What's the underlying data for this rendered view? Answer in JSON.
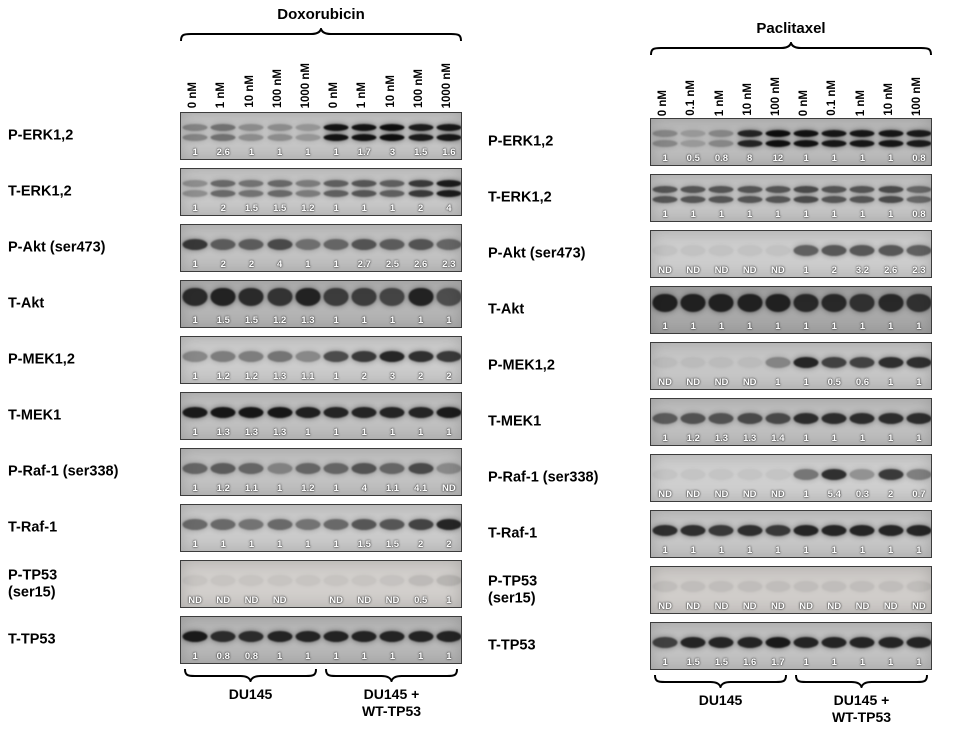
{
  "figure": {
    "panels": [
      {
        "title": "Doxorubicin",
        "doses": [
          "0 nM",
          "1 nM",
          "10 nM",
          "100 nM",
          "1000 nM",
          "0 nM",
          "1 nM",
          "10 nM",
          "100 nM",
          "1000 nM"
        ],
        "groups": [
          {
            "lines": [
              "DU145"
            ]
          },
          {
            "lines": [
              "DU145 +",
              "WT-TP53"
            ]
          }
        ],
        "rows": [
          {
            "label_lines": [
              "P-ERK1,2"
            ],
            "band": "double",
            "bg": "#c6c6c6",
            "values": [
              "1",
              "2.6",
              "1",
              "1",
              "1",
              "1",
              "1.7",
              "3",
              "1.5",
              "1.6"
            ],
            "intensities": [
              0.35,
              0.45,
              0.3,
              0.3,
              0.25,
              0.95,
              0.95,
              0.97,
              0.9,
              0.92
            ]
          },
          {
            "label_lines": [
              "T-ERK1,2"
            ],
            "band": "double",
            "bg": "#c9c9c9",
            "values": [
              "1",
              "2",
              "1.5",
              "1.5",
              "1.2",
              "1",
              "1",
              "1",
              "2",
              "4"
            ],
            "intensities": [
              0.3,
              0.5,
              0.45,
              0.5,
              0.4,
              0.55,
              0.6,
              0.55,
              0.75,
              0.9
            ]
          },
          {
            "label_lines": [
              "P-Akt (ser473)"
            ],
            "band": "single",
            "bg": "#c2c2c2",
            "values": [
              "1",
              "2",
              "2",
              "4",
              "1",
              "1",
              "2.7",
              "2.5",
              "2.6",
              "2.3"
            ],
            "intensities": [
              0.75,
              0.55,
              0.55,
              0.65,
              0.45,
              0.5,
              0.6,
              0.55,
              0.6,
              0.5
            ]
          },
          {
            "label_lines": [
              "T-Akt"
            ],
            "band": "blob",
            "bg": "#b5b5b5",
            "values": [
              "1",
              "1.5",
              "1.5",
              "1.2",
              "1.3",
              "1",
              "1",
              "1",
              "1",
              "1"
            ],
            "intensities": [
              0.8,
              0.85,
              0.8,
              0.75,
              0.85,
              0.7,
              0.7,
              0.65,
              0.85,
              0.6
            ]
          },
          {
            "label_lines": [
              "P-MEK1,2"
            ],
            "band": "single",
            "bg": "#cccccc",
            "values": [
              "1",
              "1.2",
              "1.2",
              "1.3",
              "1.1",
              "1",
              "2",
              "3",
              "2",
              "2"
            ],
            "intensities": [
              0.35,
              0.4,
              0.4,
              0.45,
              0.35,
              0.65,
              0.75,
              0.85,
              0.8,
              0.75
            ]
          },
          {
            "label_lines": [
              "T-MEK1"
            ],
            "band": "single",
            "bg": "#c0c0c0",
            "values": [
              "1",
              "1.3",
              "1.3",
              "1.3",
              "1",
              "1",
              "1",
              "1",
              "1",
              "1"
            ],
            "intensities": [
              0.9,
              0.92,
              0.92,
              0.92,
              0.88,
              0.85,
              0.85,
              0.85,
              0.85,
              0.9
            ]
          },
          {
            "label_lines": [
              "P-Raf-1 (ser338)"
            ],
            "band": "single",
            "bg": "#c2c2c2",
            "values": [
              "1",
              "1.2",
              "1.1",
              "1",
              "1.2",
              "1",
              "4",
              "1.1",
              "4.1",
              "ND"
            ],
            "intensities": [
              0.5,
              0.55,
              0.5,
              0.35,
              0.5,
              0.5,
              0.6,
              0.5,
              0.65,
              0.3
            ]
          },
          {
            "label_lines": [
              "T-Raf-1"
            ],
            "band": "single",
            "bg": "#cbcbcb",
            "values": [
              "1",
              "1",
              "1",
              "1",
              "1",
              "1",
              "1.5",
              "1.5",
              "2",
              "2"
            ],
            "intensities": [
              0.5,
              0.5,
              0.45,
              0.5,
              0.45,
              0.5,
              0.6,
              0.6,
              0.7,
              0.85
            ]
          },
          {
            "label_lines": [
              "P-TP53",
              "(ser15)"
            ],
            "band": "single",
            "bg": "#d2cfcc",
            "values": [
              "ND",
              "ND",
              "ND",
              "ND",
              "",
              "ND",
              "ND",
              "ND",
              "0.5",
              "1"
            ],
            "intensities": [
              0.05,
              0.05,
              0.05,
              0.05,
              0.05,
              0.05,
              0.05,
              0.06,
              0.1,
              0.13
            ]
          },
          {
            "label_lines": [
              "T-TP53"
            ],
            "band": "single",
            "bg": "#b8b8b8",
            "values": [
              "1",
              "0.8",
              "0.8",
              "1",
              "1",
              "1",
              "1",
              "1",
              "1",
              "1"
            ],
            "intensities": [
              0.9,
              0.8,
              0.8,
              0.85,
              0.85,
              0.85,
              0.85,
              0.85,
              0.85,
              0.85
            ]
          }
        ]
      },
      {
        "title": "Paclitaxel",
        "doses": [
          "0 nM",
          "0.1 nM",
          "1 nM",
          "10 nM",
          "100 nM",
          "0 nM",
          "0.1 nM",
          "1 nM",
          "10 nM",
          "100 nM"
        ],
        "groups": [
          {
            "lines": [
              "DU145"
            ]
          },
          {
            "lines": [
              "DU145 +",
              "WT-TP53"
            ]
          }
        ],
        "rows": [
          {
            "label_lines": [
              "P-ERK1,2"
            ],
            "band": "double",
            "bg": "#bdbdbd",
            "values": [
              "1",
              "0.5",
              "0.8",
              "8",
              "12",
              "1",
              "1",
              "1",
              "1",
              "0.8"
            ],
            "intensities": [
              0.3,
              0.2,
              0.3,
              0.85,
              0.97,
              0.95,
              0.92,
              0.92,
              0.92,
              0.9
            ]
          },
          {
            "label_lines": [
              "T-ERK1,2"
            ],
            "band": "double",
            "bg": "#c6c6c6",
            "values": [
              "1",
              "1",
              "1",
              "1",
              "1",
              "1",
              "1",
              "1",
              "1",
              "0.8"
            ],
            "intensities": [
              0.6,
              0.6,
              0.6,
              0.6,
              0.6,
              0.65,
              0.6,
              0.6,
              0.65,
              0.5
            ]
          },
          {
            "label_lines": [
              "P-Akt (ser473)"
            ],
            "band": "single",
            "bg": "#cdcdcd",
            "values": [
              "ND",
              "ND",
              "ND",
              "ND",
              "ND",
              "1",
              "2",
              "3.2",
              "2.6",
              "2.3"
            ],
            "intensities": [
              0.05,
              0.05,
              0.05,
              0.05,
              0.05,
              0.55,
              0.6,
              0.6,
              0.6,
              0.55
            ]
          },
          {
            "label_lines": [
              "T-Akt"
            ],
            "band": "blob",
            "bg": "#a8a8a8",
            "values": [
              "1",
              "1",
              "1",
              "1",
              "1",
              "1",
              "1",
              "1",
              "1",
              "1"
            ],
            "intensities": [
              0.85,
              0.85,
              0.85,
              0.85,
              0.85,
              0.8,
              0.8,
              0.75,
              0.8,
              0.75
            ]
          },
          {
            "label_lines": [
              "P-MEK1,2"
            ],
            "band": "single",
            "bg": "#c6c6c6",
            "values": [
              "ND",
              "ND",
              "ND",
              "ND",
              "1",
              "1",
              "0.5",
              "0.6",
              "1",
              "1"
            ],
            "intensities": [
              0.05,
              0.05,
              0.05,
              0.05,
              0.35,
              0.85,
              0.7,
              0.7,
              0.8,
              0.8
            ]
          },
          {
            "label_lines": [
              "T-MEK1"
            ],
            "band": "single",
            "bg": "#bfbfbf",
            "values": [
              "1",
              "1.2",
              "1.3",
              "1.3",
              "1.4",
              "1",
              "1",
              "1",
              "1",
              "1"
            ],
            "intensities": [
              0.55,
              0.6,
              0.6,
              0.65,
              0.65,
              0.8,
              0.8,
              0.8,
              0.8,
              0.8
            ]
          },
          {
            "label_lines": [
              "P-Raf-1 (ser338)"
            ],
            "band": "single",
            "bg": "#cfcfcf",
            "values": [
              "ND",
              "ND",
              "ND",
              "ND",
              "ND",
              "1",
              "5.4",
              "0.3",
              "2",
              "0.7"
            ],
            "intensities": [
              0.05,
              0.05,
              0.05,
              0.05,
              0.05,
              0.45,
              0.8,
              0.3,
              0.75,
              0.4
            ]
          },
          {
            "label_lines": [
              "T-Raf-1"
            ],
            "band": "single",
            "bg": "#c6c6c6",
            "values": [
              "1",
              "1",
              "1",
              "1",
              "1",
              "1",
              "1",
              "1",
              "1",
              "1"
            ],
            "intensities": [
              0.8,
              0.8,
              0.75,
              0.8,
              0.75,
              0.85,
              0.85,
              0.85,
              0.85,
              0.85
            ]
          },
          {
            "label_lines": [
              "P-TP53",
              "(ser15)"
            ],
            "band": "single",
            "bg": "#d0cdca",
            "values": [
              "ND",
              "ND",
              "ND",
              "ND",
              "ND",
              "ND",
              "ND",
              "ND",
              "ND",
              "ND"
            ],
            "intensities": [
              0.08,
              0.08,
              0.08,
              0.08,
              0.08,
              0.08,
              0.08,
              0.08,
              0.08,
              0.08
            ]
          },
          {
            "label_lines": [
              "T-TP53"
            ],
            "band": "single",
            "bg": "#c2c2c2",
            "values": [
              "1",
              "1.5",
              "1.5",
              "1.6",
              "1.7",
              "1",
              "1",
              "1",
              "1",
              "1"
            ],
            "intensities": [
              0.7,
              0.85,
              0.85,
              0.85,
              0.9,
              0.85,
              0.85,
              0.85,
              0.85,
              0.85
            ]
          }
        ]
      }
    ]
  }
}
